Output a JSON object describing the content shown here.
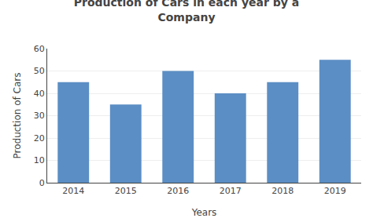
{
  "chart_data": {
    "type": "bar",
    "title": "Production of Cars in each year by a\nCompany",
    "xlabel": "Years",
    "ylabel": "Production of Cars",
    "categories": [
      "2014",
      "2015",
      "2016",
      "2017",
      "2018",
      "2019"
    ],
    "values": [
      45,
      35,
      50,
      40,
      45,
      55
    ],
    "color": "#5b8ec4",
    "ylim": [
      0,
      60
    ],
    "yticks": [
      0,
      10,
      20,
      30,
      40,
      50,
      60
    ],
    "grid": true
  }
}
